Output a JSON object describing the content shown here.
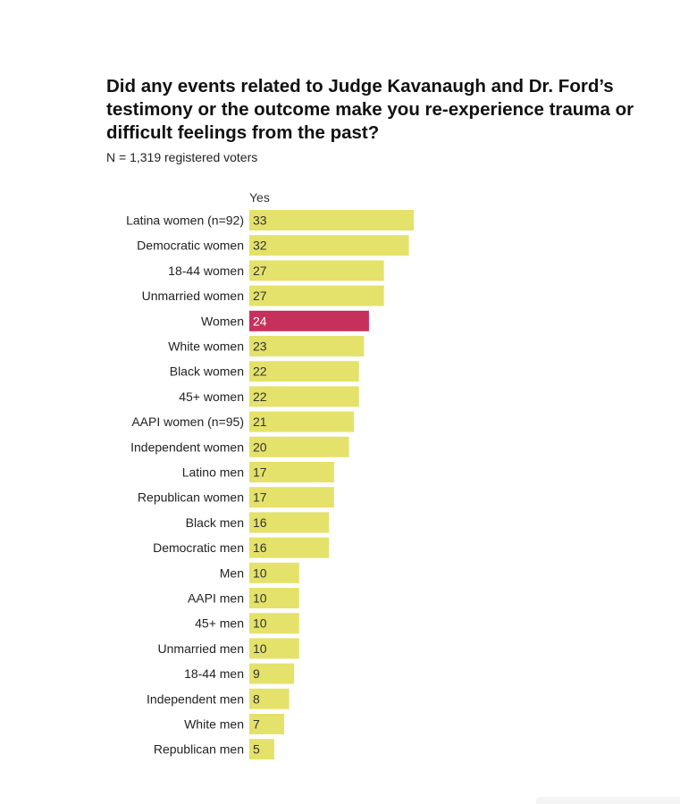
{
  "title": "Did any events related to Judge Kavanaugh and Dr. Ford’s testimony or the outcome make you re-experience trauma or difficult feelings from the past?",
  "subtitle": "N = 1,319 registered voters",
  "colors": {
    "bar": "#e4e26a",
    "highlight": "#c5315c",
    "label_on_bar": "#333333",
    "label_on_highlight": "#ffffff"
  },
  "chart_data": {
    "type": "bar",
    "orientation": "horizontal",
    "column_header": "Yes",
    "categories": [
      "Latina women (n=92)",
      "Democratic women",
      "18-44 women",
      "Unmarried women",
      "Women",
      "White women",
      "Black women",
      "45+ women",
      "AAPI women (n=95)",
      "Independent women",
      "Latino men",
      "Republican women",
      "Black men",
      "Democratic men",
      "Men",
      "AAPI men",
      "45+ men",
      "Unmarried men",
      "18-44 men",
      "Independent men",
      "White men",
      "Republican men"
    ],
    "values": [
      33,
      32,
      27,
      27,
      24,
      23,
      22,
      22,
      21,
      20,
      17,
      17,
      16,
      16,
      10,
      10,
      10,
      10,
      9,
      8,
      7,
      5
    ],
    "highlight": "Women",
    "xlim": [
      0,
      100
    ],
    "grid": false,
    "legend": "none"
  }
}
